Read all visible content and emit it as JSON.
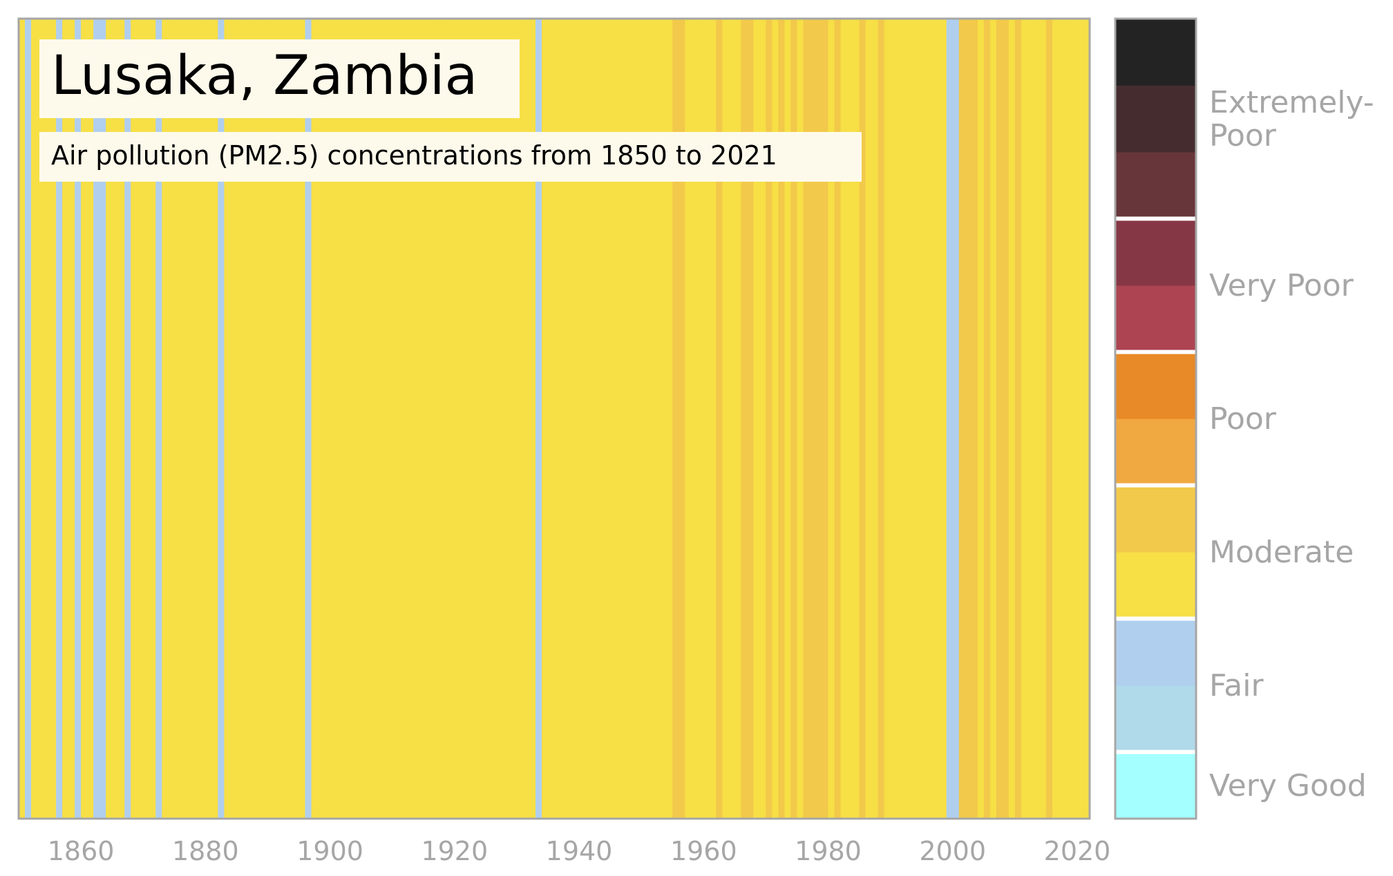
{
  "chart_data": {
    "type": "heatmap",
    "title": "Lusaka, Zambia",
    "subtitle": "Air pollution (PM2.5) concentrations from 1850 to 2021",
    "xlim": [
      1850,
      2022
    ],
    "x_ticks": [
      1860,
      1880,
      1900,
      1920,
      1940,
      1960,
      1980,
      2000,
      2020
    ],
    "default_level": "moderate_low",
    "year_levels": [
      {
        "year": 1851,
        "level": "fair_high"
      },
      {
        "year": 1856,
        "level": "fair_high"
      },
      {
        "year": 1859,
        "level": "fair_high"
      },
      {
        "year": 1862,
        "level": "fair_high"
      },
      {
        "year": 1863,
        "level": "fair_high"
      },
      {
        "year": 1867,
        "level": "fair_high"
      },
      {
        "year": 1872,
        "level": "fair_high"
      },
      {
        "year": 1882,
        "level": "fair_high"
      },
      {
        "year": 1896,
        "level": "fair_high"
      },
      {
        "year": 1933,
        "level": "fair_high"
      },
      {
        "year": 1955,
        "level": "moderate_high"
      },
      {
        "year": 1956,
        "level": "moderate_high"
      },
      {
        "year": 1962,
        "level": "moderate_high"
      },
      {
        "year": 1966,
        "level": "moderate_high"
      },
      {
        "year": 1967,
        "level": "moderate_high"
      },
      {
        "year": 1970,
        "level": "moderate_high"
      },
      {
        "year": 1972,
        "level": "moderate_high"
      },
      {
        "year": 1974,
        "level": "moderate_high"
      },
      {
        "year": 1976,
        "level": "moderate_high"
      },
      {
        "year": 1977,
        "level": "moderate_high"
      },
      {
        "year": 1978,
        "level": "moderate_high"
      },
      {
        "year": 1979,
        "level": "moderate_high"
      },
      {
        "year": 1981,
        "level": "moderate_high"
      },
      {
        "year": 1985,
        "level": "moderate_high"
      },
      {
        "year": 1988,
        "level": "moderate_high"
      },
      {
        "year": 1999,
        "level": "fair_high"
      },
      {
        "year": 2000,
        "level": "fair_high"
      },
      {
        "year": 2001,
        "level": "moderate_high"
      },
      {
        "year": 2002,
        "level": "moderate_high"
      },
      {
        "year": 2003,
        "level": "moderate_high"
      },
      {
        "year": 2005,
        "level": "moderate_high"
      },
      {
        "year": 2007,
        "level": "moderate_high"
      },
      {
        "year": 2008,
        "level": "moderate_high"
      },
      {
        "year": 2010,
        "level": "moderate_high"
      },
      {
        "year": 2015,
        "level": "moderate_high"
      }
    ],
    "colors": {
      "very_good": "#a4ffff",
      "fair_low": "#b0d9e9",
      "fair_high": "#b0cfee",
      "moderate_low": "#f7df46",
      "moderate_high": "#f2c94a",
      "poor_low": "#f0a841",
      "poor_high": "#e88a27",
      "very_poor_low": "#ad4452",
      "very_poor_high": "#863745",
      "extremely_poor_low": "#67363a",
      "extremely_poor_mid": "#452d2f",
      "extremely_poor_high": "#232323"
    },
    "legend": {
      "position": "right",
      "segments": [
        {
          "level": "very_good",
          "group": 0
        },
        {
          "level": "fair_low",
          "group": 1
        },
        {
          "level": "fair_high",
          "group": 1
        },
        {
          "level": "moderate_low",
          "group": 2
        },
        {
          "level": "moderate_high",
          "group": 2
        },
        {
          "level": "poor_low",
          "group": 3
        },
        {
          "level": "poor_high",
          "group": 3
        },
        {
          "level": "very_poor_low",
          "group": 4
        },
        {
          "level": "very_poor_high",
          "group": 4
        },
        {
          "level": "extremely_poor_low",
          "group": 5
        },
        {
          "level": "extremely_poor_mid",
          "group": 5
        },
        {
          "level": "extremely_poor_high",
          "group": 5
        }
      ],
      "categories": [
        {
          "lines": [
            "Very Good"
          ]
        },
        {
          "lines": [
            "Fair"
          ]
        },
        {
          "lines": [
            "Moderate"
          ]
        },
        {
          "lines": [
            "Poor"
          ]
        },
        {
          "lines": [
            "Very Poor"
          ]
        },
        {
          "lines": [
            "Extremely-",
            "Poor"
          ]
        }
      ]
    },
    "grid": false
  }
}
